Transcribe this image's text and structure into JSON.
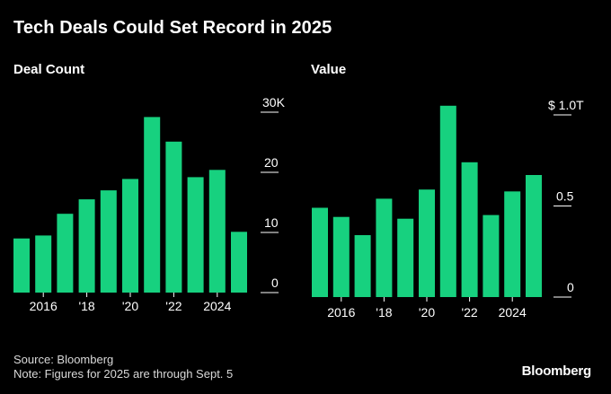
{
  "title": "Tech Deals Could Set Record in 2025",
  "source": "Source: Bloomberg",
  "note": "Note: Figures for 2025 are through Sept. 5",
  "brand": "Bloomberg",
  "colors": {
    "bar": "#17d17f",
    "background": "#000000",
    "axis": "#ffffff"
  },
  "chart_data": [
    {
      "type": "bar",
      "title": "Deal Count",
      "categories": [
        "2015",
        "2016",
        "2017",
        "2018",
        "2019",
        "2020",
        "2021",
        "2022",
        "2023",
        "2024",
        "2025"
      ],
      "values": [
        9,
        9.5,
        13.1,
        15.5,
        17,
        18.9,
        29.2,
        25.1,
        19.2,
        20.4,
        10.1
      ],
      "ylim": [
        0,
        30
      ],
      "yticks": [
        0,
        10,
        20,
        30
      ],
      "ytick_labels": [
        "0",
        "10",
        "20",
        "30K"
      ],
      "xtick_labels": [
        "2016",
        "'18",
        "'20",
        "'22",
        "2024"
      ],
      "xtick_categories": [
        "2016",
        "2018",
        "2020",
        "2022",
        "2024"
      ]
    },
    {
      "type": "bar",
      "title": "Value",
      "categories": [
        "2015",
        "2016",
        "2017",
        "2018",
        "2019",
        "2020",
        "2021",
        "2022",
        "2023",
        "2024",
        "2025"
      ],
      "values": [
        0.49,
        0.44,
        0.34,
        0.54,
        0.43,
        0.59,
        1.05,
        0.74,
        0.45,
        0.58,
        0.67
      ],
      "ylim": [
        0,
        1.0
      ],
      "yticks": [
        0,
        0.5,
        1.0
      ],
      "ytick_labels": [
        "0",
        "0.5",
        "$ 1.0T"
      ],
      "xtick_labels": [
        "2016",
        "'18",
        "'20",
        "'22",
        "2024"
      ],
      "xtick_categories": [
        "2016",
        "2018",
        "2020",
        "2022",
        "2024"
      ]
    }
  ]
}
